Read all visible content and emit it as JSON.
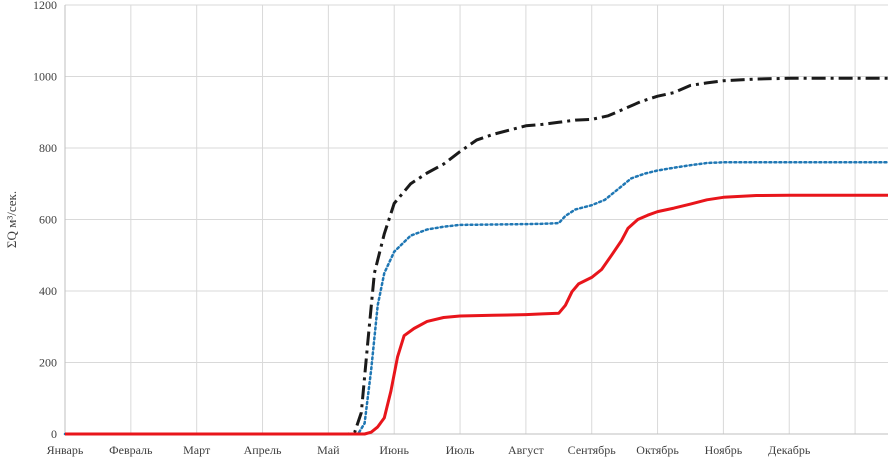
{
  "chart_data": {
    "type": "line",
    "title": "",
    "xlabel": "",
    "ylabel": "ΣQ м³/сек.",
    "ylim": [
      0,
      1200
    ],
    "xlim": [
      0,
      12.5
    ],
    "y_ticks": [
      0,
      200,
      400,
      600,
      800,
      1000,
      1200
    ],
    "grid": true,
    "legend": "none",
    "months": [
      "Январь",
      "Февраль",
      "Март",
      "Апрель",
      "Май",
      "Июнь",
      "Июль",
      "Август",
      "Сентябрь",
      "Октябрь",
      "Ноябрь",
      "Декабрь"
    ],
    "series": [
      {
        "style": "dash-dot",
        "color": "#1a1a1a",
        "points": [
          [
            0,
            0
          ],
          [
            4.3,
            0
          ],
          [
            4.4,
            5
          ],
          [
            4.5,
            60
          ],
          [
            4.6,
            260
          ],
          [
            4.7,
            450
          ],
          [
            4.85,
            560
          ],
          [
            5.0,
            645
          ],
          [
            5.25,
            700
          ],
          [
            5.5,
            730
          ],
          [
            5.75,
            755
          ],
          [
            6.0,
            790
          ],
          [
            6.25,
            822
          ],
          [
            6.5,
            838
          ],
          [
            6.75,
            850
          ],
          [
            7.0,
            862
          ],
          [
            7.25,
            866
          ],
          [
            7.5,
            872
          ],
          [
            7.75,
            878
          ],
          [
            8.0,
            880
          ],
          [
            8.25,
            890
          ],
          [
            8.5,
            910
          ],
          [
            8.75,
            930
          ],
          [
            9.0,
            945
          ],
          [
            9.25,
            955
          ],
          [
            9.5,
            975
          ],
          [
            9.75,
            982
          ],
          [
            10.0,
            988
          ],
          [
            10.5,
            993
          ],
          [
            11.0,
            995
          ],
          [
            12.5,
            995
          ]
        ]
      },
      {
        "style": "dotted",
        "color": "#1f77b4",
        "points": [
          [
            0,
            0
          ],
          [
            4.45,
            0
          ],
          [
            4.55,
            30
          ],
          [
            4.65,
            180
          ],
          [
            4.75,
            360
          ],
          [
            4.85,
            450
          ],
          [
            5.0,
            510
          ],
          [
            5.25,
            555
          ],
          [
            5.5,
            572
          ],
          [
            5.75,
            580
          ],
          [
            6.0,
            585
          ],
          [
            6.5,
            586
          ],
          [
            7.0,
            587
          ],
          [
            7.25,
            588
          ],
          [
            7.5,
            590
          ],
          [
            7.6,
            610
          ],
          [
            7.75,
            628
          ],
          [
            8.0,
            640
          ],
          [
            8.2,
            655
          ],
          [
            8.4,
            685
          ],
          [
            8.6,
            715
          ],
          [
            8.8,
            728
          ],
          [
            9.0,
            737
          ],
          [
            9.25,
            745
          ],
          [
            9.5,
            752
          ],
          [
            9.75,
            758
          ],
          [
            10.0,
            760
          ],
          [
            12.5,
            760
          ]
        ]
      },
      {
        "style": "solid",
        "color": "#e8151b",
        "points": [
          [
            0,
            0
          ],
          [
            4.55,
            0
          ],
          [
            4.65,
            5
          ],
          [
            4.75,
            20
          ],
          [
            4.85,
            45
          ],
          [
            4.95,
            120
          ],
          [
            5.05,
            215
          ],
          [
            5.15,
            275
          ],
          [
            5.3,
            295
          ],
          [
            5.5,
            315
          ],
          [
            5.75,
            326
          ],
          [
            6.0,
            330
          ],
          [
            6.5,
            332
          ],
          [
            7.0,
            334
          ],
          [
            7.25,
            336
          ],
          [
            7.5,
            338
          ],
          [
            7.6,
            360
          ],
          [
            7.7,
            398
          ],
          [
            7.8,
            420
          ],
          [
            8.0,
            438
          ],
          [
            8.15,
            460
          ],
          [
            8.3,
            500
          ],
          [
            8.45,
            540
          ],
          [
            8.55,
            575
          ],
          [
            8.7,
            600
          ],
          [
            8.85,
            612
          ],
          [
            9.0,
            622
          ],
          [
            9.25,
            632
          ],
          [
            9.5,
            643
          ],
          [
            9.75,
            655
          ],
          [
            10.0,
            662
          ],
          [
            10.5,
            667
          ],
          [
            11.0,
            668
          ],
          [
            12.5,
            668
          ]
        ]
      }
    ]
  }
}
